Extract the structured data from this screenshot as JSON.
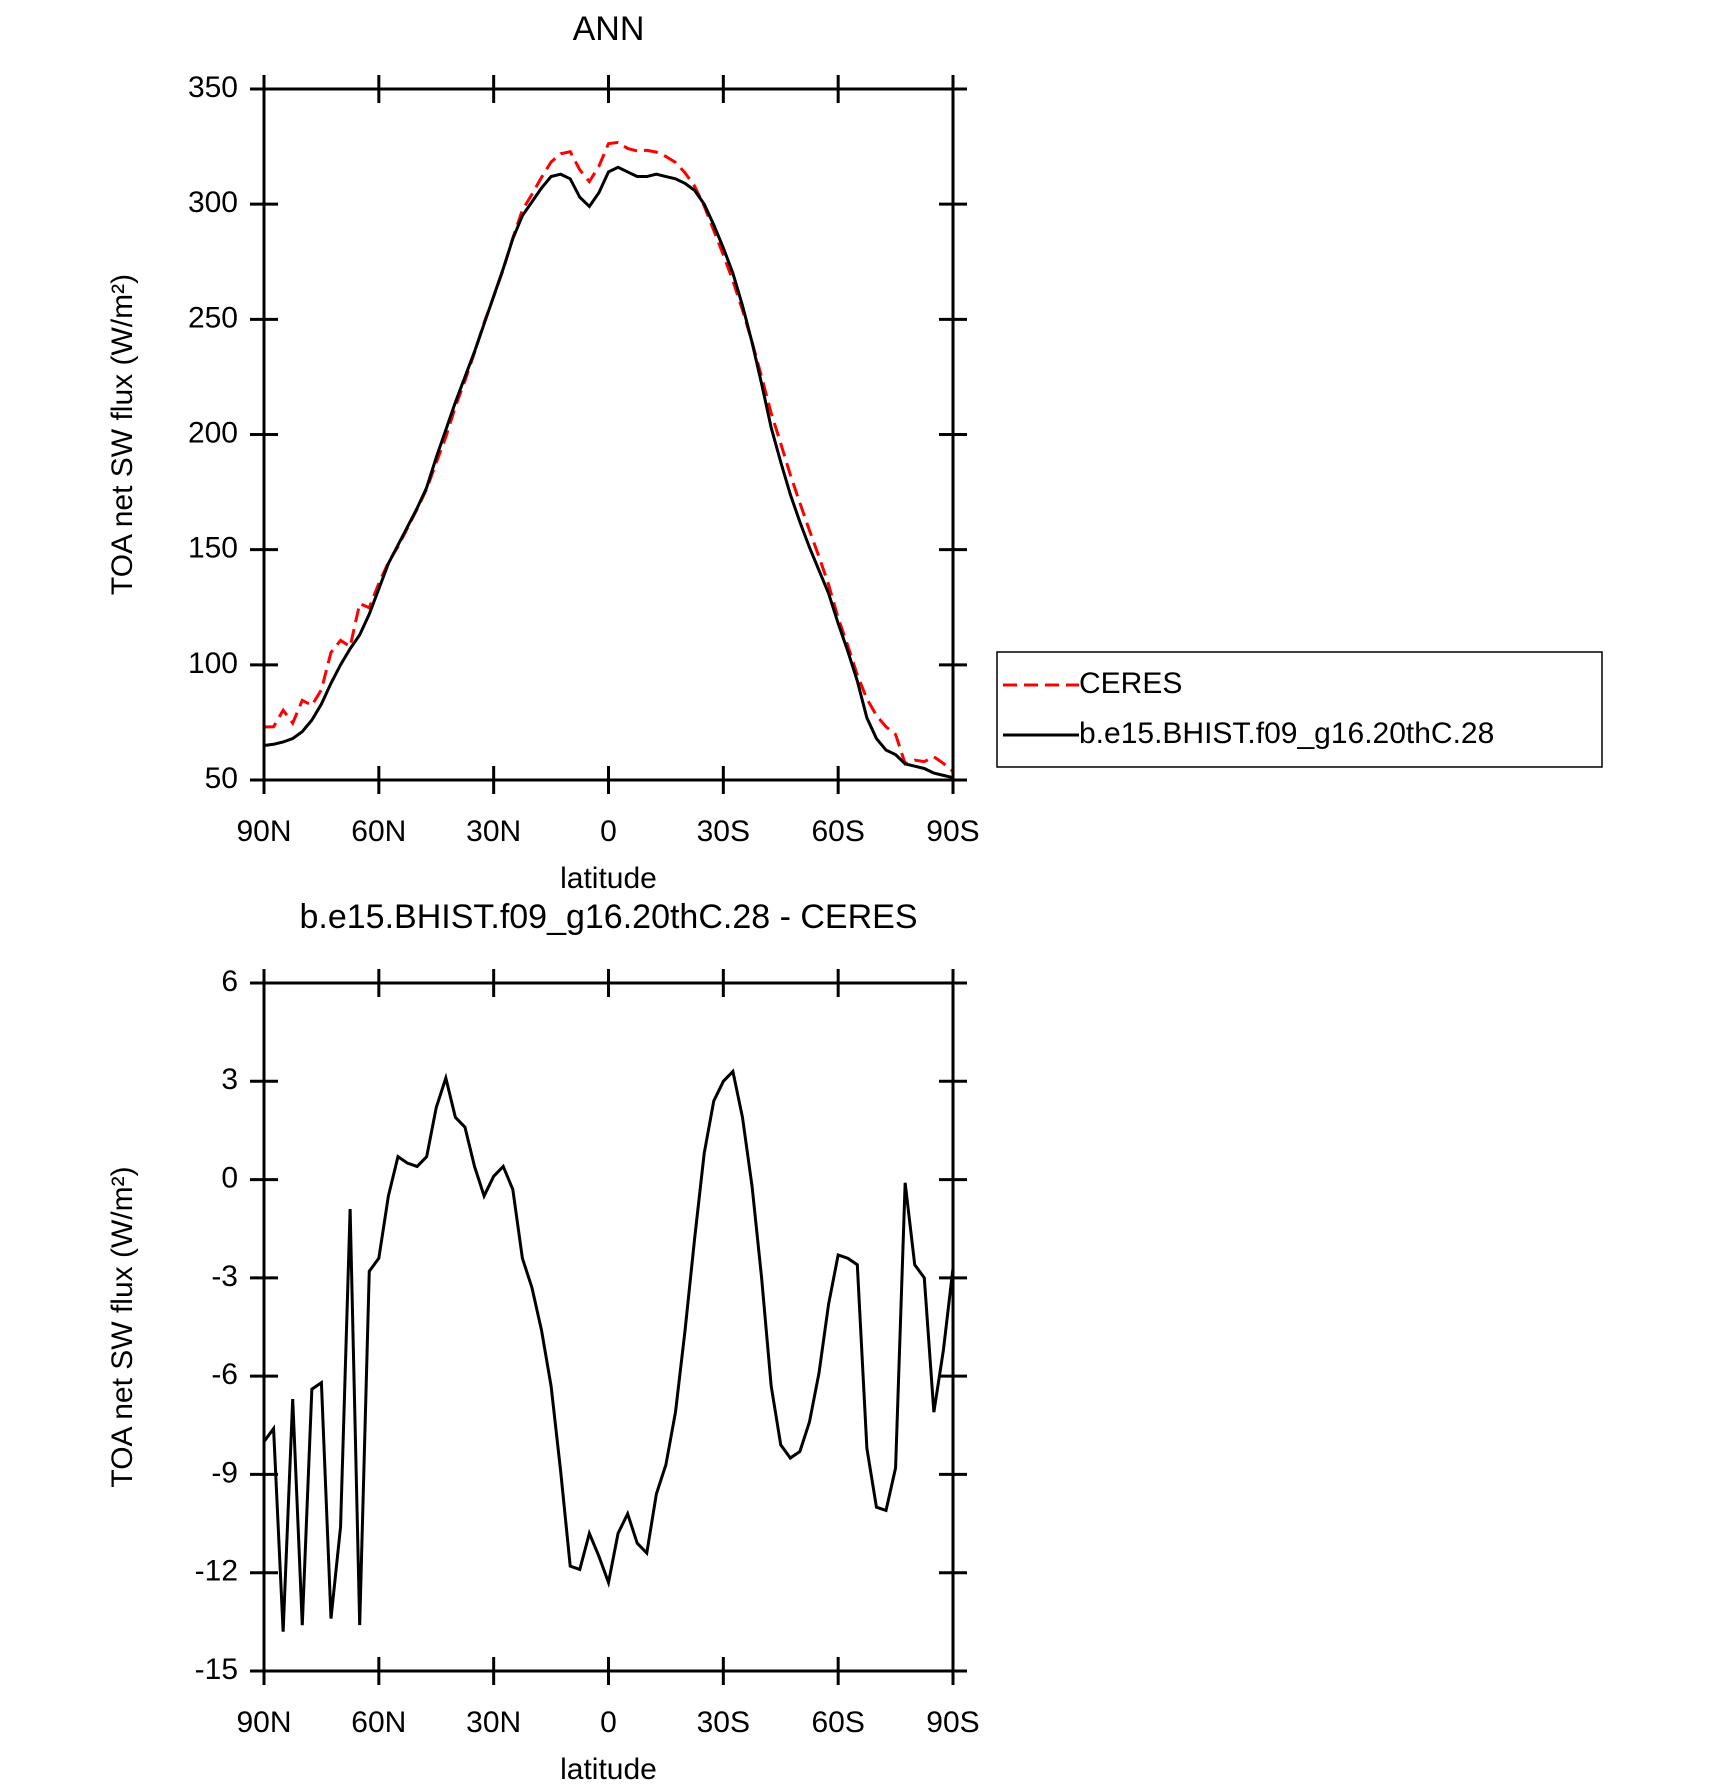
{
  "chart_data": [
    {
      "type": "line",
      "title": "ANN",
      "xlabel": "latitude",
      "ylabel": "TOA net SW flux (W/m²)",
      "x": [
        90,
        87.5,
        85,
        82.5,
        80,
        77.5,
        75,
        72.5,
        70,
        67.5,
        65,
        62.5,
        60,
        57.5,
        55,
        52.5,
        50,
        47.5,
        45,
        42.5,
        40,
        37.5,
        35,
        32.5,
        30,
        27.5,
        25,
        22.5,
        20,
        17.5,
        15,
        12.5,
        10,
        7.5,
        5,
        2.5,
        0,
        -2.5,
        -5,
        -7.5,
        -10,
        -12.5,
        -15,
        -17.5,
        -20,
        -22.5,
        -25,
        -27.5,
        -30,
        -32.5,
        -35,
        -37.5,
        -40,
        -42.5,
        -45,
        -47.5,
        -50,
        -52.5,
        -55,
        -57.5,
        -60,
        -62.5,
        -65,
        -67.5,
        -70,
        -72.5,
        -75,
        -77.5,
        -80,
        -82.5,
        -85,
        -87.5,
        -90
      ],
      "series": [
        {
          "name": "CERES",
          "color": "#ff0000",
          "dashed": true,
          "values": [
            73,
            73.1,
            80.3,
            74.7,
            84.6,
            82.4,
            89.2,
            105.4,
            110.6,
            107.9,
            126.6,
            124.8,
            135.4,
            144.5,
            151.3,
            159.5,
            167.6,
            176.3,
            187.8,
            198.9,
            212.1,
            223.4,
            235.6,
            248.5,
            259.9,
            271.6,
            285.3,
            297.4,
            304.3,
            311.6,
            318.3,
            321.9,
            322.8,
            314.9,
            309.8,
            316.5,
            326.3,
            326.8,
            324.2,
            323.1,
            323.4,
            322.6,
            320.7,
            318.1,
            313.6,
            307.8,
            299.2,
            288.6,
            278,
            266.7,
            254.1,
            240.2,
            225,
            209.3,
            196.1,
            182.5,
            170.3,
            158.4,
            146.9,
            134.8,
            120.3,
            108.4,
            95.6,
            85.2,
            78,
            73.1,
            69.8,
            57.1,
            58.6,
            58,
            60.1,
            57.2,
            53.7
          ]
        },
        {
          "name": "b.e15.BHIST.f09_g16.20thC.28",
          "color": "#000000",
          "dashed": false,
          "values": [
            65,
            65.5,
            66.5,
            68,
            71,
            76,
            83,
            92,
            100,
            107,
            113,
            122,
            133,
            144,
            152,
            160,
            168,
            177,
            190,
            202,
            214,
            225,
            236,
            248,
            260,
            272,
            285,
            295,
            301,
            307,
            312,
            313,
            311,
            303,
            299,
            305,
            314,
            316,
            314,
            312,
            312,
            313,
            312,
            311,
            309,
            306,
            300,
            291,
            281,
            270,
            256,
            240,
            222,
            203,
            188,
            174,
            162,
            151,
            141,
            131,
            118,
            106,
            93,
            77,
            68,
            63,
            61,
            57,
            56,
            55,
            53,
            52,
            51
          ]
        }
      ],
      "xlim": [
        90,
        -90
      ],
      "xticks": [
        {
          "value": 90,
          "label": "90N"
        },
        {
          "value": 60,
          "label": "60N"
        },
        {
          "value": 30,
          "label": "30N"
        },
        0,
        {
          "value": -30,
          "label": "30S"
        },
        {
          "value": -60,
          "label": "60S"
        },
        {
          "value": -90,
          "label": "90S"
        }
      ],
      "ylim": [
        50,
        350
      ],
      "yticks": [
        50,
        100,
        150,
        200,
        250,
        300,
        350
      ],
      "legend": "right"
    },
    {
      "type": "line",
      "title": "b.e15.BHIST.f09_g16.20thC.28 - CERES",
      "xlabel": "latitude",
      "ylabel": "TOA net SW flux (W/m²)",
      "x": [
        90,
        87.5,
        85,
        82.5,
        80,
        77.5,
        75,
        72.5,
        70,
        67.5,
        65,
        62.5,
        60,
        57.5,
        55,
        52.5,
        50,
        47.5,
        45,
        42.5,
        40,
        37.5,
        35,
        32.5,
        30,
        27.5,
        25,
        22.5,
        20,
        17.5,
        15,
        12.5,
        10,
        7.5,
        5,
        2.5,
        0,
        -2.5,
        -5,
        -7.5,
        -10,
        -12.5,
        -15,
        -17.5,
        -20,
        -22.5,
        -25,
        -27.5,
        -30,
        -32.5,
        -35,
        -37.5,
        -40,
        -42.5,
        -45,
        -47.5,
        -50,
        -52.5,
        -55,
        -57.5,
        -60,
        -62.5,
        -65,
        -67.5,
        -70,
        -72.5,
        -75,
        -77.5,
        -80,
        -82.5,
        -85,
        -87.5,
        -90
      ],
      "color": "#000000",
      "values": [
        -8.0,
        -7.6,
        -13.8,
        -6.7,
        -13.6,
        -6.4,
        -6.2,
        -13.4,
        -10.6,
        -0.9,
        -13.6,
        -2.8,
        -2.4,
        -0.5,
        0.7,
        0.5,
        0.4,
        0.7,
        2.2,
        3.1,
        1.9,
        1.6,
        0.4,
        -0.5,
        0.1,
        0.4,
        -0.3,
        -2.4,
        -3.3,
        -4.6,
        -6.3,
        -8.9,
        -11.8,
        -11.9,
        -10.8,
        -11.5,
        -12.3,
        -10.8,
        -10.2,
        -11.1,
        -11.4,
        -9.6,
        -8.7,
        -7.1,
        -4.6,
        -1.8,
        0.8,
        2.4,
        3.0,
        3.3,
        1.9,
        -0.2,
        -3.0,
        -6.3,
        -8.1,
        -8.5,
        -8.3,
        -7.4,
        -5.9,
        -3.8,
        -2.3,
        -2.4,
        -2.6,
        -8.2,
        -10.0,
        -10.1,
        -8.8,
        -0.1,
        -2.6,
        -3.0,
        -7.1,
        -5.2,
        -2.7
      ],
      "xlim": [
        90,
        -90
      ],
      "xticks": [
        {
          "value": 90,
          "label": "90N"
        },
        {
          "value": 60,
          "label": "60N"
        },
        {
          "value": 30,
          "label": "30N"
        },
        0,
        {
          "value": -30,
          "label": "30S"
        },
        {
          "value": -60,
          "label": "60S"
        },
        {
          "value": -90,
          "label": "90S"
        }
      ],
      "ylim": [
        -15,
        6
      ],
      "yticks": [
        -15,
        -12,
        -9,
        -6,
        -3,
        0,
        3,
        6
      ]
    }
  ]
}
